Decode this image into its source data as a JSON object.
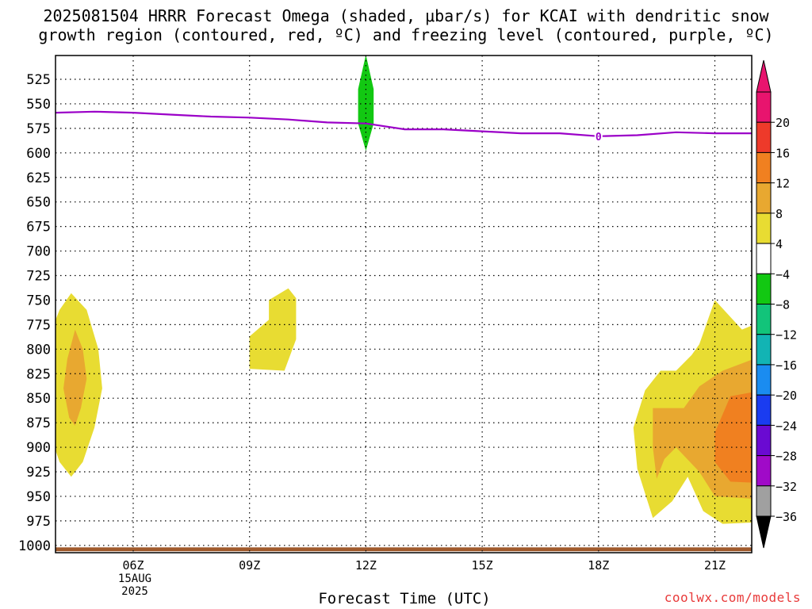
{
  "header": {
    "title_line1": "2025081504 HRRR Forecast Omega (shaded, μbar/s) for KCAI with dendritic snow",
    "title_line2": "growth region (contoured, red, ºC) and freezing level (contoured, purple, ºC)"
  },
  "footer": {
    "date_line1": "15AUG",
    "date_line2": "2025",
    "watermark": "coolwx.com/models"
  },
  "chart_data": {
    "type": "time-height contour",
    "title": "2025081504 HRRR Forecast Omega (shaded, μbar/s) for KCAI with dendritic snow growth region (contoured, red, ºC) and freezing level (contoured, purple, ºC)",
    "xlabel": "Forecast Time (UTC)",
    "x_ticks": [
      "06Z",
      "09Z",
      "12Z",
      "15Z",
      "18Z",
      "21Z"
    ],
    "x_tick_hours": [
      6,
      9,
      12,
      15,
      18,
      21
    ],
    "xlim_hours": [
      2,
      23
    ],
    "y_ticks": [
      525,
      550,
      575,
      600,
      625,
      650,
      675,
      700,
      725,
      750,
      775,
      800,
      825,
      850,
      875,
      900,
      925,
      950,
      975,
      1000
    ],
    "ylim_hPa": [
      500,
      1005
    ],
    "y_inverted": true,
    "grid": true,
    "colorbar": {
      "labels": [
        "20",
        "16",
        "12",
        "8",
        "4",
        "−4",
        "−8",
        "−12",
        "−16",
        "−20",
        "−24",
        "−28",
        "−32",
        "−36"
      ],
      "bins": [
        {
          "range": [
            20,
            24
          ],
          "color": "#e8146e"
        },
        {
          "range": [
            16,
            20
          ],
          "color": "#ee3a2a"
        },
        {
          "range": [
            12,
            16
          ],
          "color": "#f08020"
        },
        {
          "range": [
            8,
            12
          ],
          "color": "#e8a830"
        },
        {
          "range": [
            4,
            8
          ],
          "color": "#e8dc32"
        },
        {
          "range": [
            -4,
            4
          ],
          "color": "#ffffff"
        },
        {
          "range": [
            -8,
            -4
          ],
          "color": "#12c812"
        },
        {
          "range": [
            -12,
            -8
          ],
          "color": "#12c47a"
        },
        {
          "range": [
            -16,
            -12
          ],
          "color": "#12b4b4"
        },
        {
          "range": [
            -20,
            -16
          ],
          "color": "#1a8cf0"
        },
        {
          "range": [
            -24,
            -20
          ],
          "color": "#1a3cf0"
        },
        {
          "range": [
            -28,
            -24
          ],
          "color": "#6a0ad2"
        },
        {
          "range": [
            -32,
            -28
          ],
          "color": "#a00ac8"
        },
        {
          "range": [
            -36,
            -32
          ],
          "color": "#a0a0a0"
        }
      ],
      "top_triangle_color": "#e8146e",
      "bottom_triangle_color": "#000000"
    },
    "freezing_level": {
      "label": "0",
      "color": "#9b00c8",
      "hours": [
        2,
        3,
        4,
        5,
        6,
        7,
        8,
        9,
        10,
        11,
        12,
        13,
        14,
        15,
        16,
        17,
        18,
        19,
        20,
        21,
        22,
        23
      ],
      "pressure_hPa": [
        560,
        560,
        559,
        558,
        559,
        561,
        563,
        564,
        566,
        569,
        570,
        576,
        576,
        578,
        580,
        580,
        583,
        582,
        579,
        580,
        580,
        579
      ]
    },
    "omega_regions": [
      {
        "name": "yellow-0430-lower",
        "value_range": [
          4,
          8
        ],
        "color": "#e8dc32",
        "points": [
          [
            4.4,
            743
          ],
          [
            4.1,
            760
          ],
          [
            3.7,
            800
          ],
          [
            3.6,
            840
          ],
          [
            3.8,
            880
          ],
          [
            4.1,
            915
          ],
          [
            4.4,
            930
          ],
          [
            4.7,
            915
          ],
          [
            5.0,
            880
          ],
          [
            5.2,
            840
          ],
          [
            5.1,
            800
          ],
          [
            4.8,
            760
          ]
        ]
      },
      {
        "name": "orange-0430",
        "value_range": [
          8,
          12
        ],
        "color": "#e8a830",
        "points": [
          [
            4.5,
            780
          ],
          [
            4.3,
            810
          ],
          [
            4.2,
            840
          ],
          [
            4.35,
            870
          ],
          [
            4.5,
            878
          ],
          [
            4.65,
            860
          ],
          [
            4.8,
            830
          ],
          [
            4.7,
            800
          ]
        ]
      },
      {
        "name": "yellow-0930",
        "value_range": [
          4,
          8
        ],
        "color": "#e8dc32",
        "points": [
          [
            9.0,
            787
          ],
          [
            9.5,
            770
          ],
          [
            9.5,
            750
          ],
          [
            10.0,
            738
          ],
          [
            10.2,
            748
          ],
          [
            10.2,
            790
          ],
          [
            9.9,
            822
          ],
          [
            9.0,
            820
          ]
        ]
      },
      {
        "name": "green-1200",
        "value_range": [
          -8,
          -4
        ],
        "color": "#12c812",
        "points": [
          [
            12.0,
            500
          ],
          [
            12.2,
            535
          ],
          [
            12.2,
            570
          ],
          [
            12.0,
            598
          ],
          [
            11.8,
            570
          ],
          [
            11.8,
            535
          ]
        ]
      },
      {
        "name": "yellow-2100",
        "value_range": [
          4,
          8
        ],
        "color": "#e8dc32",
        "points": [
          [
            20.0,
            822
          ],
          [
            19.6,
            822
          ],
          [
            19.2,
            842
          ],
          [
            18.9,
            880
          ],
          [
            19.0,
            922
          ],
          [
            19.4,
            972
          ],
          [
            19.9,
            955
          ],
          [
            20.3,
            930
          ],
          [
            20.7,
            965
          ],
          [
            21.2,
            978
          ],
          [
            23.0,
            975
          ],
          [
            23.0,
            793
          ],
          [
            22.5,
            780
          ],
          [
            22.2,
            772
          ],
          [
            21.7,
            780
          ],
          [
            21.0,
            750
          ],
          [
            20.6,
            795
          ],
          [
            20.4,
            806
          ]
        ]
      },
      {
        "name": "orange-light-2100",
        "value_range": [
          8,
          12
        ],
        "color": "#e8a830",
        "points": [
          [
            19.4,
            860
          ],
          [
            19.4,
            900
          ],
          [
            19.5,
            932
          ],
          [
            19.7,
            912
          ],
          [
            20.0,
            900
          ],
          [
            20.6,
            925
          ],
          [
            21.0,
            950
          ],
          [
            23.0,
            955
          ],
          [
            23.0,
            810
          ],
          [
            22.0,
            810
          ],
          [
            21.2,
            822
          ],
          [
            20.6,
            838
          ],
          [
            20.2,
            860
          ]
        ]
      },
      {
        "name": "orange-2100",
        "value_range": [
          12,
          16
        ],
        "color": "#f08020",
        "points": [
          [
            21.0,
            885
          ],
          [
            21.0,
            915
          ],
          [
            21.4,
            935
          ],
          [
            23.0,
            938
          ],
          [
            23.0,
            840
          ],
          [
            22.5,
            840
          ],
          [
            21.4,
            848
          ]
        ]
      },
      {
        "name": "red-2215",
        "value_range": [
          16,
          20
        ],
        "color": "#ee3a2a",
        "points": [
          [
            22.2,
            880
          ],
          [
            22.6,
            868
          ],
          [
            23.0,
            868
          ],
          [
            23.0,
            892
          ],
          [
            22.6,
            892
          ]
        ]
      }
    ],
    "surface_band": {
      "color": "#a05a2c",
      "top_hPa": 1002,
      "bottom_hPa": 1006
    }
  }
}
